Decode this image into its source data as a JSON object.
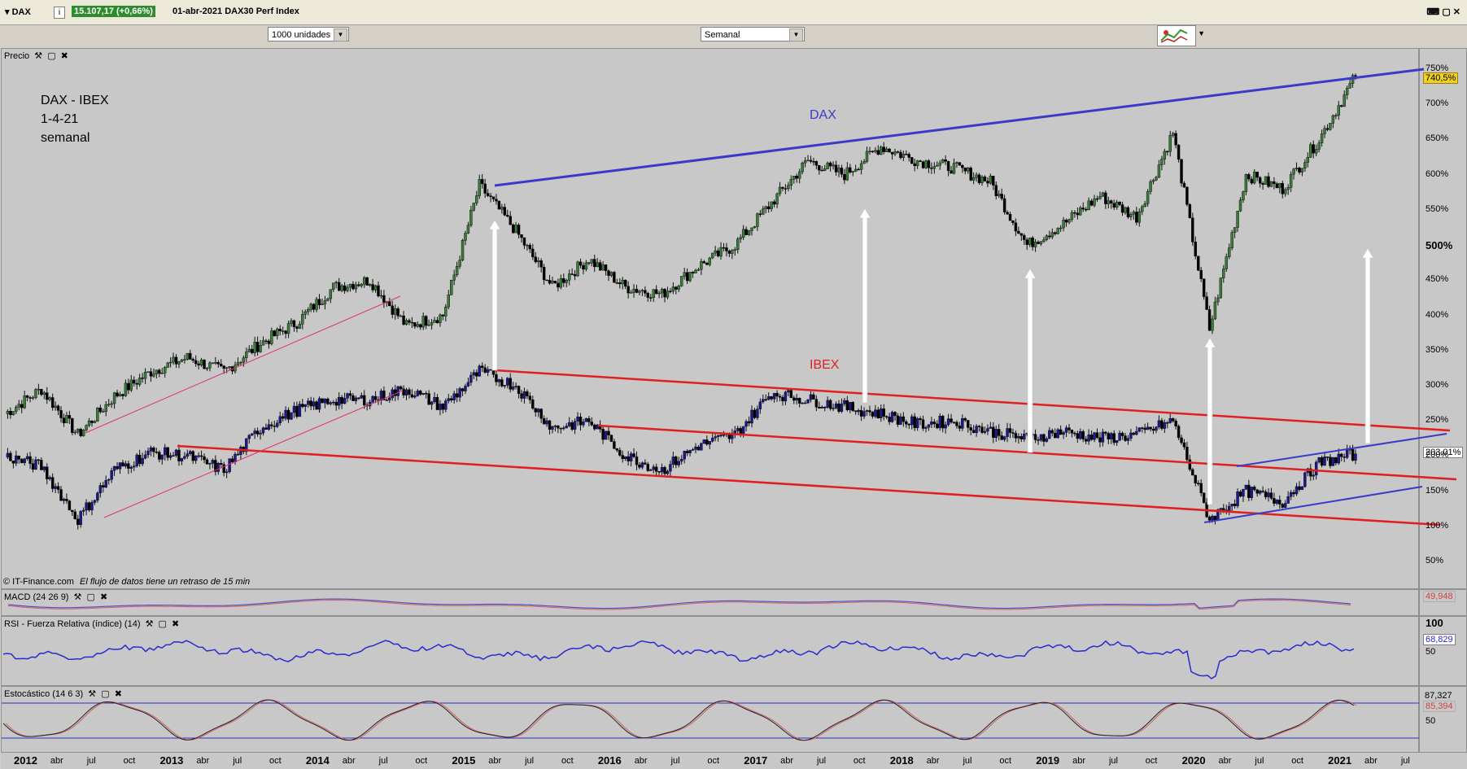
{
  "header": {
    "ticker": "DAX",
    "info_icon": "i",
    "price_change": "15.107,17 (+0,66%)",
    "date_title": "01-abr-2021 DAX30 Perf Index",
    "window_controls": "⌨ ▢ ✕"
  },
  "toolbar": {
    "units_select": "1000 unidades",
    "period_select": "Semanal",
    "chart_type_icon": "chart-type-icon"
  },
  "price_pane": {
    "label": "Precio",
    "note_lines": [
      "DAX - IBEX",
      "1-4-21",
      "semanal"
    ],
    "dax_label": "DAX",
    "ibex_label": "IBEX",
    "copyright": "© IT-Finance.com",
    "delay_notice": "El flujo de datos tiene un retraso de 15 min",
    "last_dax": "740,5%",
    "last_ibex": "203,01%",
    "y_ticks": [
      "750%",
      "700%",
      "650%",
      "600%",
      "550%",
      "500%",
      "450%",
      "400%",
      "350%",
      "300%",
      "250%",
      "200%",
      "150%",
      "100%",
      "50%"
    ]
  },
  "macd_pane": {
    "label": "MACD (24 26 9)",
    "value": "49,948"
  },
  "rsi_pane": {
    "label": "RSI - Fuerza Relativa (índice) (14)",
    "value": "68,829",
    "ticks": [
      "100",
      "50"
    ]
  },
  "stoch_pane": {
    "label": "Estocástico (14 6 3)",
    "value1": "87,327",
    "value2": "85,394",
    "ticks": [
      "50"
    ]
  },
  "x_axis": [
    "2012",
    "abr",
    "jul",
    "oct",
    "2013",
    "abr",
    "jul",
    "oct",
    "2014",
    "abr",
    "jul",
    "oct",
    "2015",
    "abr",
    "jul",
    "oct",
    "2016",
    "abr",
    "jul",
    "oct",
    "2017",
    "abr",
    "jul",
    "oct",
    "2018",
    "abr",
    "jul",
    "oct",
    "2019",
    "abr",
    "jul",
    "oct",
    "2020",
    "abr",
    "jul",
    "oct",
    "2021",
    "abr",
    "jul"
  ],
  "colors": {
    "dax": "#3a7a3a",
    "ibex": "#1a1a8c",
    "trend_blue": "#3a3ac8",
    "trend_red": "#e02020",
    "trend_pink": "#e0306a",
    "highlight": "#f0d020"
  },
  "chart_data": {
    "type": "line",
    "xlabel": "",
    "ylabel": "",
    "ylim": [
      20,
      760
    ],
    "x": [
      "2012-01",
      "2012-04",
      "2012-07",
      "2012-10",
      "2013-01",
      "2013-04",
      "2013-07",
      "2013-10",
      "2014-01",
      "2014-04",
      "2014-07",
      "2014-10",
      "2015-01",
      "2015-04",
      "2015-07",
      "2015-10",
      "2016-01",
      "2016-04",
      "2016-07",
      "2016-10",
      "2017-01",
      "2017-04",
      "2017-07",
      "2017-10",
      "2018-01",
      "2018-04",
      "2018-07",
      "2018-10",
      "2019-01",
      "2019-04",
      "2019-07",
      "2019-10",
      "2020-01",
      "2020-04",
      "2020-07",
      "2020-10",
      "2021-01",
      "2021-04"
    ],
    "series": [
      {
        "name": "DAX",
        "values": [
          260,
          295,
          230,
          285,
          320,
          340,
          320,
          360,
          390,
          440,
          450,
          385,
          400,
          585,
          520,
          440,
          480,
          440,
          430,
          470,
          500,
          560,
          620,
          600,
          640,
          620,
          610,
          590,
          500,
          530,
          570,
          540,
          660,
          380,
          600,
          580,
          650,
          740
        ]
      },
      {
        "name": "IBEX",
        "values": [
          200,
          185,
          110,
          180,
          205,
          200,
          180,
          240,
          265,
          280,
          280,
          295,
          270,
          320,
          300,
          240,
          250,
          200,
          180,
          215,
          230,
          290,
          280,
          270,
          260,
          245,
          250,
          235,
          225,
          235,
          225,
          230,
          250,
          110,
          150,
          135,
          190,
          203
        ]
      }
    ],
    "grid": false,
    "legend": "none"
  }
}
